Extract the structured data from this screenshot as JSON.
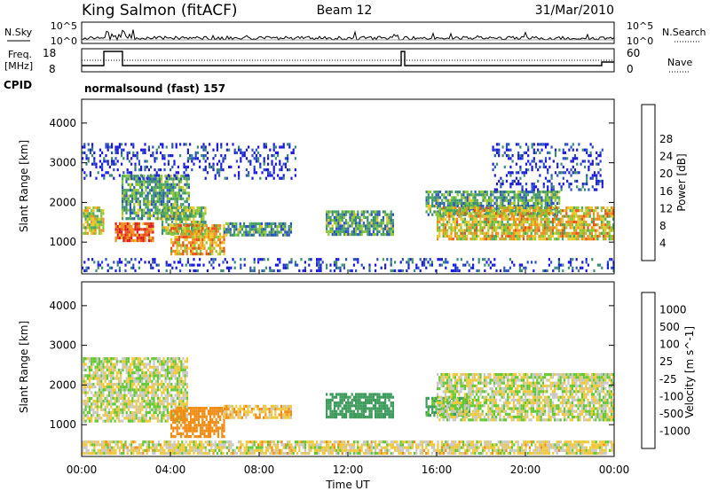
{
  "header": {
    "station": "King Salmon (fitACF)",
    "beam": "Beam 12",
    "date": "31/Mar/2010"
  },
  "noise_panel": {
    "left_label": "N.Sky",
    "right_label": "N.Search",
    "ticks_left": [
      "10^5",
      "10^0"
    ],
    "ticks_right": [
      "10^5",
      "10^0"
    ]
  },
  "freq_panel": {
    "left_label_1": "Freq.",
    "left_label_2": "[MHz]",
    "left_ticks": [
      "18",
      "8"
    ],
    "right_label": "Nave",
    "right_ticks": [
      "60",
      "0"
    ]
  },
  "cpid": {
    "label": "CPID",
    "value": "normalsound (fast) 157"
  },
  "x_axis": {
    "label": "Time UT",
    "ticks": [
      "00:00",
      "04:00",
      "08:00",
      "12:00",
      "16:00",
      "20:00",
      "00:00"
    ]
  },
  "colors": {
    "power_scale": [
      "#1a1adc",
      "#2a52c0",
      "#3e8a78",
      "#4aa85a",
      "#8cc832",
      "#e8c828",
      "#f08c1e",
      "#e85018",
      "#dc1a1a"
    ],
    "velocity_scale": [
      "#1a3cb4",
      "#2e7a6c",
      "#3c9a5a",
      "#64c832",
      "#c8c8c8",
      "#f0c83c",
      "#f08c14",
      "#e85a14",
      "#dc1e1e"
    ]
  },
  "chart_data": [
    {
      "type": "heatmap",
      "title": "Power",
      "ylabel": "Slant Range [km]",
      "xlabel": "Time UT",
      "xlim_hours": [
        0,
        24
      ],
      "ylim": [
        200,
        4600
      ],
      "yticks": [
        1000,
        2000,
        3000,
        4000
      ],
      "colorbar": {
        "label": "Power [dB]",
        "ticks": [
          "4",
          "8",
          "12",
          "16",
          "20",
          "24",
          "28"
        ],
        "range": [
          0,
          30
        ]
      },
      "regions": [
        {
          "t": [
            0.05,
            1.0
          ],
          "r": [
            1200,
            1900
          ],
          "level": 0.55
        },
        {
          "t": [
            1.5,
            3.2
          ],
          "r": [
            1050,
            1500
          ],
          "level": 0.85
        },
        {
          "t": [
            1.8,
            4.8
          ],
          "r": [
            1600,
            2700
          ],
          "level": 0.35
        },
        {
          "t": [
            3.6,
            5.6
          ],
          "r": [
            1200,
            1900
          ],
          "level": 0.45
        },
        {
          "t": [
            4.0,
            6.4
          ],
          "r": [
            700,
            1450
          ],
          "level": 0.65
        },
        {
          "t": [
            6.4,
            9.4
          ],
          "r": [
            1200,
            1500
          ],
          "level": 0.35
        },
        {
          "t": [
            0.0,
            9.6
          ],
          "r": [
            2600,
            3500
          ],
          "level": 0.08
        },
        {
          "t": [
            11.0,
            14.0
          ],
          "r": [
            1200,
            1800
          ],
          "level": 0.35
        },
        {
          "t": [
            15.5,
            21.5
          ],
          "r": [
            1700,
            2300
          ],
          "level": 0.35
        },
        {
          "t": [
            16.0,
            24.0
          ],
          "r": [
            1100,
            1900
          ],
          "level": 0.6
        },
        {
          "t": [
            18.5,
            23.5
          ],
          "r": [
            2300,
            3500
          ],
          "level": 0.08
        },
        {
          "t": [
            0.0,
            24.0
          ],
          "r": [
            250,
            600
          ],
          "level": 0.12
        }
      ]
    },
    {
      "type": "heatmap",
      "title": "Velocity",
      "ylabel": "Slant Range [km]",
      "xlabel": "Time UT",
      "xlim_hours": [
        0,
        24
      ],
      "ylim": [
        200,
        4600
      ],
      "yticks": [
        1000,
        2000,
        3000,
        4000
      ],
      "colorbar": {
        "label": "Velocity [m s^-1]",
        "ticks": [
          "1000",
          "500",
          "100",
          "25",
          "-25",
          "-100",
          "-500",
          "-1000"
        ],
        "range": [
          -1000,
          1000
        ]
      },
      "regions": [
        {
          "t": [
            0.05,
            4.8
          ],
          "r": [
            1100,
            2700
          ],
          "value": 0
        },
        {
          "t": [
            4.0,
            6.4
          ],
          "r": [
            700,
            1450
          ],
          "value": -180
        },
        {
          "t": [
            6.4,
            9.4
          ],
          "r": [
            1200,
            1500
          ],
          "value": -80
        },
        {
          "t": [
            11.0,
            14.0
          ],
          "r": [
            1200,
            1800
          ],
          "value": 300
        },
        {
          "t": [
            15.5,
            17.5
          ],
          "r": [
            1200,
            1700
          ],
          "value": 120
        },
        {
          "t": [
            16.0,
            24.0
          ],
          "r": [
            1100,
            2300
          ],
          "value": 0
        },
        {
          "t": [
            0.0,
            24.0
          ],
          "r": [
            250,
            600
          ],
          "value": -30
        }
      ]
    }
  ]
}
